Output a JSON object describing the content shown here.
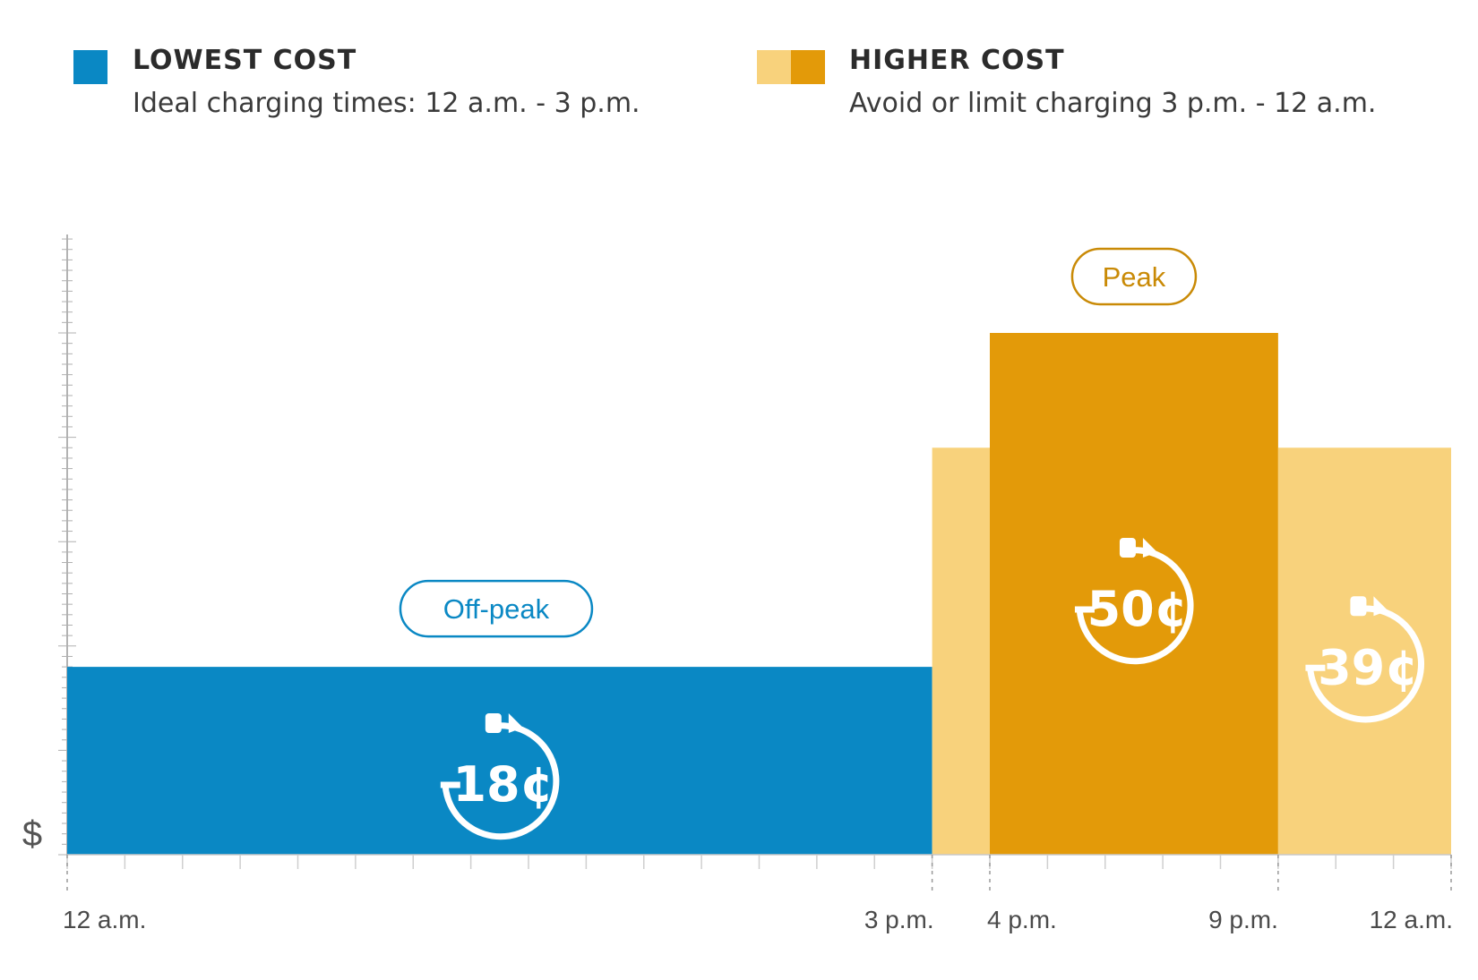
{
  "legend": {
    "lowest": {
      "title": "LOWEST COST",
      "desc": "Ideal charging times: 12 a.m. - 3 p.m.",
      "color": "#0a88c4"
    },
    "higher": {
      "title": "HIGHER COST",
      "desc": "Avoid or limit charging 3 p.m. - 12 a.m.",
      "color_light": "#f8d27c",
      "color_dark": "#e39a09"
    }
  },
  "chart_data": {
    "type": "bar",
    "ylabel": "$",
    "x_ticks": [
      "12 a.m.",
      "3 p.m.",
      "4 p.m.",
      "9 p.m.",
      "12 a.m."
    ],
    "x_tick_hours": [
      0,
      15,
      16,
      21,
      24
    ],
    "series": [
      {
        "start": "12 a.m.",
        "end": "3 p.m.",
        "start_hour": 0,
        "end_hour": 15,
        "value": 18,
        "label": "18¢",
        "tag": "Off-peak",
        "color": "#0a88c4"
      },
      {
        "start": "3 p.m.",
        "end": "4 p.m.",
        "start_hour": 15,
        "end_hour": 16,
        "value": 39,
        "label": "",
        "tag": "",
        "color": "#f8d27c"
      },
      {
        "start": "4 p.m.",
        "end": "9 p.m.",
        "start_hour": 16,
        "end_hour": 21,
        "value": 50,
        "label": "50¢",
        "tag": "Peak",
        "color": "#e39a09"
      },
      {
        "start": "9 p.m.",
        "end": "12 a.m.",
        "start_hour": 21,
        "end_hour": 24,
        "value": 39,
        "label": "39¢",
        "tag": "",
        "color": "#f8d27c"
      }
    ],
    "ylim": [
      0,
      60
    ],
    "grid": false
  }
}
